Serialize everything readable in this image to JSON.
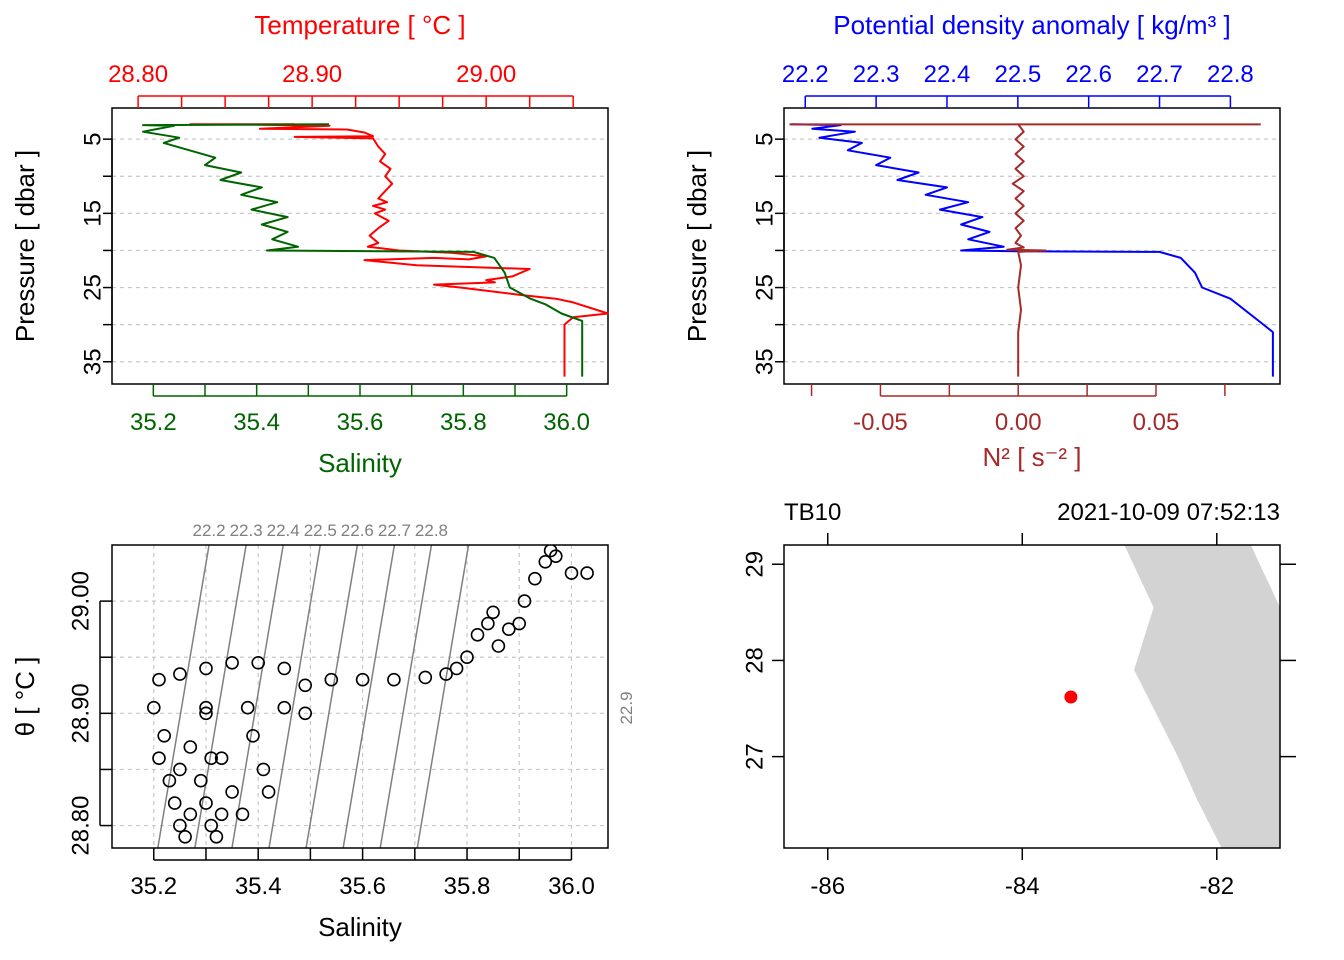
{
  "colors": {
    "temperature": "#ff0000",
    "salinity": "#006400",
    "density": "#0000ff",
    "n2": "#a52a2a",
    "isopycnal": "#808080",
    "land": "#d3d3d3",
    "station": "#ff0000"
  },
  "chart_data": [
    {
      "name": "profile-temperature-salinity",
      "type": "line",
      "top_label": "Temperature [ °C ]",
      "bottom_label": "Salinity",
      "ylabel": "Pressure [ dbar ]",
      "top_ticks": [
        "28.80",
        "28.90",
        "29.00"
      ],
      "bottom_ticks": [
        "35.2",
        "35.4",
        "35.6",
        "35.8",
        "36.0"
      ],
      "y_ticks": [
        "5",
        "10",
        "15",
        "20",
        "25",
        "30",
        "35"
      ],
      "temperature_range": [
        28.785,
        29.07
      ],
      "salinity_range": [
        35.12,
        36.08
      ],
      "pressure_range": [
        38,
        0.8
      ],
      "grid": true,
      "series": [
        {
          "quantity": "temperature",
          "values": [
            [
              28.89,
              3.0
            ],
            [
              28.83,
              3.0
            ],
            [
              28.87,
              3.05
            ],
            [
              28.91,
              3.2
            ],
            [
              28.89,
              3.4
            ],
            [
              28.87,
              3.6
            ],
            [
              28.92,
              3.7
            ],
            [
              28.93,
              4.1
            ],
            [
              28.935,
              4.6
            ],
            [
              28.89,
              4.7
            ],
            [
              28.935,
              4.9
            ],
            [
              28.938,
              6.0
            ],
            [
              28.942,
              7.0
            ],
            [
              28.939,
              8.0
            ],
            [
              28.945,
              9.0
            ],
            [
              28.942,
              10.0
            ],
            [
              28.946,
              11.0
            ],
            [
              28.942,
              12.0
            ],
            [
              28.938,
              13.0
            ],
            [
              28.943,
              13.5
            ],
            [
              28.935,
              14.0
            ],
            [
              28.942,
              14.5
            ],
            [
              28.936,
              15.0
            ],
            [
              28.944,
              16.0
            ],
            [
              28.938,
              17.0
            ],
            [
              28.933,
              18.0
            ],
            [
              28.938,
              19.0
            ],
            [
              28.932,
              19.5
            ],
            [
              28.95,
              20.0
            ],
            [
              28.98,
              20.3
            ],
            [
              29.0,
              20.8
            ],
            [
              28.99,
              21.2
            ],
            [
              28.97,
              21.0
            ],
            [
              28.93,
              21.3
            ],
            [
              28.96,
              22.0
            ],
            [
              29.025,
              22.5
            ],
            [
              29.015,
              23.5
            ],
            [
              29.0,
              24.0
            ],
            [
              29.005,
              24.3
            ],
            [
              28.97,
              24.6
            ],
            [
              28.985,
              25.0
            ],
            [
              29.02,
              26.0
            ],
            [
              29.04,
              26.5
            ],
            [
              29.05,
              27.0
            ],
            [
              29.07,
              28.5
            ],
            [
              29.05,
              29.0
            ],
            [
              29.045,
              30.0
            ],
            [
              29.045,
              37.0
            ]
          ]
        },
        {
          "quantity": "salinity",
          "values": [
            [
              35.54,
              3.0
            ],
            [
              35.18,
              3.1
            ],
            [
              35.24,
              3.2
            ],
            [
              35.18,
              4.0
            ],
            [
              35.25,
              4.8
            ],
            [
              35.22,
              5.5
            ],
            [
              35.27,
              6.5
            ],
            [
              35.32,
              7.5
            ],
            [
              35.3,
              8.5
            ],
            [
              35.37,
              9.5
            ],
            [
              35.33,
              10.5
            ],
            [
              35.41,
              11.5
            ],
            [
              35.37,
              12.5
            ],
            [
              35.44,
              13.5
            ],
            [
              35.39,
              14.5
            ],
            [
              35.46,
              15.5
            ],
            [
              35.41,
              16.5
            ],
            [
              35.46,
              17.5
            ],
            [
              35.43,
              18.5
            ],
            [
              35.48,
              19.5
            ],
            [
              35.42,
              20.0
            ],
            [
              35.82,
              20.2
            ],
            [
              35.86,
              21.0
            ],
            [
              35.88,
              23.0
            ],
            [
              35.89,
              25.0
            ],
            [
              35.93,
              26.5
            ],
            [
              35.96,
              27.3
            ],
            [
              35.99,
              28.5
            ],
            [
              36.03,
              29.5
            ],
            [
              36.03,
              37.0
            ]
          ]
        }
      ]
    },
    {
      "name": "profile-density-n2",
      "type": "line",
      "top_label": "Potential density anomaly [ kg/m³ ]",
      "bottom_label": "N² [ s⁻² ]",
      "ylabel": "Pressure [ dbar ]",
      "top_ticks": [
        "22.2",
        "22.3",
        "22.4",
        "22.5",
        "22.6",
        "22.7",
        "22.8"
      ],
      "bottom_ticks": [
        "-0.05",
        "0.00",
        "0.05"
      ],
      "y_ticks": [
        "5",
        "10",
        "15",
        "20",
        "25",
        "30",
        "35"
      ],
      "density_range": [
        22.17,
        22.87
      ],
      "n2_range": [
        -0.085,
        0.095
      ],
      "pressure_range": [
        38,
        0.8
      ],
      "grid": true,
      "series": [
        {
          "quantity": "density",
          "values": [
            [
              22.18,
              3.0
            ],
            [
              22.25,
              3.1
            ],
            [
              22.21,
              3.6
            ],
            [
              22.27,
              4.0
            ],
            [
              22.22,
              4.8
            ],
            [
              22.28,
              5.5
            ],
            [
              22.26,
              6.5
            ],
            [
              22.32,
              7.5
            ],
            [
              22.3,
              8.5
            ],
            [
              22.36,
              9.5
            ],
            [
              22.33,
              10.5
            ],
            [
              22.4,
              11.5
            ],
            [
              22.37,
              12.5
            ],
            [
              22.43,
              13.5
            ],
            [
              22.39,
              14.5
            ],
            [
              22.45,
              15.5
            ],
            [
              22.42,
              16.5
            ],
            [
              22.46,
              17.5
            ],
            [
              22.43,
              18.5
            ],
            [
              22.48,
              19.5
            ],
            [
              22.42,
              20.0
            ],
            [
              22.5,
              20.1
            ],
            [
              22.7,
              20.2
            ],
            [
              22.73,
              21.0
            ],
            [
              22.75,
              23.0
            ],
            [
              22.76,
              25.0
            ],
            [
              22.8,
              26.5
            ],
            [
              22.84,
              29.5
            ],
            [
              22.86,
              31.0
            ],
            [
              22.86,
              37.0
            ]
          ]
        },
        {
          "quantity": "n2",
          "values": [
            [
              0.0,
              3.0
            ],
            [
              0.002,
              4.0
            ],
            [
              -0.001,
              5.0
            ],
            [
              0.002,
              6.0
            ],
            [
              -0.001,
              7.0
            ],
            [
              0.002,
              8.0
            ],
            [
              -0.001,
              9.0
            ],
            [
              0.002,
              10.0
            ],
            [
              -0.002,
              11.0
            ],
            [
              0.002,
              12.0
            ],
            [
              -0.001,
              13.0
            ],
            [
              0.002,
              14.0
            ],
            [
              -0.001,
              15.0
            ],
            [
              0.002,
              16.0
            ],
            [
              -0.001,
              17.0
            ],
            [
              0.001,
              18.0
            ],
            [
              -0.001,
              19.0
            ],
            [
              0.002,
              19.6
            ],
            [
              -0.004,
              19.9
            ],
            [
              0.01,
              20.0
            ],
            [
              0.0,
              20.2
            ],
            [
              0.001,
              22.0
            ],
            [
              0.0,
              25.0
            ],
            [
              0.001,
              28.0
            ],
            [
              0.0,
              31.0
            ],
            [
              0.0,
              37.0
            ]
          ]
        }
      ]
    },
    {
      "name": "ts-diagram",
      "type": "scatter",
      "xlabel": "Salinity",
      "ylabel": "θ [ °C ]",
      "x_ticks": [
        "35.2",
        "35.4",
        "35.6",
        "35.8",
        "36.0"
      ],
      "y_ticks": [
        "28.80",
        "28.90",
        "29.00"
      ],
      "xlim": [
        35.12,
        36.07
      ],
      "ylim": [
        28.78,
        29.05
      ],
      "grid": true,
      "isopycnal_labels": [
        "22.2",
        "22.3",
        "22.4",
        "22.5",
        "22.6",
        "22.7",
        "22.8",
        "22.9"
      ],
      "points": [
        [
          35.2,
          28.905
        ],
        [
          35.22,
          28.88
        ],
        [
          35.21,
          28.86
        ],
        [
          35.23,
          28.84
        ],
        [
          35.24,
          28.82
        ],
        [
          35.25,
          28.8
        ],
        [
          35.26,
          28.79
        ],
        [
          35.27,
          28.81
        ],
        [
          35.25,
          28.85
        ],
        [
          35.27,
          28.87
        ],
        [
          35.29,
          28.84
        ],
        [
          35.3,
          28.82
        ],
        [
          35.31,
          28.8
        ],
        [
          35.32,
          28.79
        ],
        [
          35.33,
          28.81
        ],
        [
          35.31,
          28.86
        ],
        [
          35.3,
          28.9
        ],
        [
          35.33,
          28.86
        ],
        [
          35.35,
          28.83
        ],
        [
          35.37,
          28.81
        ],
        [
          35.39,
          28.88
        ],
        [
          35.41,
          28.85
        ],
        [
          35.42,
          28.83
        ],
        [
          35.21,
          28.93
        ],
        [
          35.25,
          28.935
        ],
        [
          35.3,
          28.94
        ],
        [
          35.35,
          28.945
        ],
        [
          35.4,
          28.945
        ],
        [
          35.45,
          28.94
        ],
        [
          35.49,
          28.925
        ],
        [
          35.3,
          28.905
        ],
        [
          35.38,
          28.905
        ],
        [
          35.45,
          28.905
        ],
        [
          35.49,
          28.9
        ],
        [
          35.54,
          28.93
        ],
        [
          35.6,
          28.93
        ],
        [
          35.66,
          28.93
        ],
        [
          35.72,
          28.932
        ],
        [
          35.76,
          28.935
        ],
        [
          35.78,
          28.94
        ],
        [
          35.8,
          28.95
        ],
        [
          35.82,
          28.97
        ],
        [
          35.84,
          28.98
        ],
        [
          35.85,
          28.99
        ],
        [
          35.86,
          28.96
        ],
        [
          35.88,
          28.975
        ],
        [
          35.9,
          28.98
        ],
        [
          35.91,
          29.0
        ],
        [
          35.93,
          29.02
        ],
        [
          35.95,
          29.035
        ],
        [
          35.96,
          29.045
        ],
        [
          35.97,
          29.04
        ],
        [
          36.0,
          29.025
        ],
        [
          36.03,
          29.025
        ]
      ]
    },
    {
      "name": "station-map",
      "type": "scatter",
      "station": "TB10",
      "timestamp": "2021-10-09 07:52:13",
      "x_ticks": [
        "-86",
        "-84",
        "-82"
      ],
      "y_ticks": [
        "27",
        "28",
        "29"
      ],
      "xlim": [
        -86.45,
        -81.35
      ],
      "ylim": [
        26.05,
        29.2
      ],
      "station_position": [
        -83.5,
        27.62
      ],
      "land": [
        [
          -82.95,
          29.2
        ],
        [
          -82.65,
          28.55
        ],
        [
          -82.85,
          27.9
        ],
        [
          -82.65,
          27.5
        ],
        [
          -82.4,
          27.0
        ],
        [
          -82.2,
          26.55
        ],
        [
          -81.95,
          26.05
        ],
        [
          -81.35,
          26.05
        ],
        [
          -81.35,
          28.55
        ],
        [
          -81.65,
          29.2
        ]
      ]
    }
  ]
}
